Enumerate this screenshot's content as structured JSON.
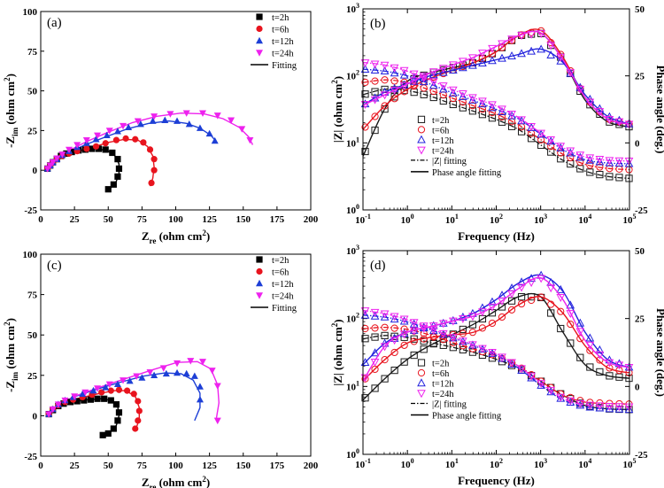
{
  "chart_data": [
    {
      "id": "a",
      "type": "scatter",
      "panel_label": "(a)",
      "xlabel": "Z",
      "xlabel_sub": "re",
      "xlabel_unit": " (ohm cm",
      "xlabel_sup": "2",
      "xlabel_close": ")",
      "ylabel": "-Z",
      "ylabel_sub": "im",
      "ylabel_unit": " (ohm cm",
      "ylabel_sup": "2",
      "ylabel_close": ")",
      "xlim": [
        0,
        200
      ],
      "ylim": [
        -25,
        100
      ],
      "xticks": [
        0,
        25,
        50,
        75,
        100,
        125,
        150,
        175,
        200
      ],
      "yticks": [
        -25,
        0,
        25,
        50,
        75,
        100
      ],
      "fit_label": "Fitting",
      "series": [
        {
          "name": "t=2h",
          "marker": "square",
          "color": "#000000",
          "x": [
            5,
            7,
            9,
            12,
            15,
            19,
            23,
            28,
            33,
            38,
            43,
            48,
            53,
            57,
            58,
            57,
            54,
            50
          ],
          "y": [
            1,
            3,
            5,
            7,
            9,
            10.5,
            11.5,
            12.5,
            13,
            13.5,
            13.5,
            13,
            11,
            7,
            1,
            -4,
            -9,
            -12
          ]
        },
        {
          "name": "t=6h",
          "marker": "circle",
          "color": "#e8141e",
          "x": [
            5,
            7,
            9,
            12,
            16,
            21,
            27,
            34,
            41,
            48,
            56,
            63,
            70,
            76,
            81,
            84,
            84,
            82
          ],
          "y": [
            1,
            3,
            5,
            7,
            9,
            10.5,
            12,
            13.5,
            15,
            17,
            19,
            20,
            19.5,
            17.5,
            13,
            7,
            0,
            -8
          ]
        },
        {
          "name": "t=12h",
          "marker": "triangle",
          "color": "#1d3fd6",
          "x": [
            5,
            7,
            9,
            12,
            16,
            21,
            27,
            34,
            41,
            49,
            57,
            65,
            74,
            83,
            92,
            101,
            110,
            118,
            125,
            129
          ],
          "y": [
            1,
            3,
            5,
            7,
            9.5,
            12,
            14.5,
            17,
            19.5,
            22,
            24.5,
            27,
            29,
            31,
            31.5,
            31,
            29,
            26.5,
            23,
            18.5
          ]
        },
        {
          "name": "t=24h",
          "marker": "triangle-down",
          "color": "#ee22ee",
          "x": [
            5,
            7,
            9,
            12,
            16,
            21,
            27,
            34,
            42,
            51,
            61,
            72,
            84,
            96,
            108,
            120,
            131,
            141,
            149,
            155
          ],
          "y": [
            1,
            3,
            5,
            7.5,
            10,
            13,
            16,
            19,
            22,
            25,
            28,
            31,
            34,
            35.5,
            36,
            36,
            34.5,
            31.5,
            26,
            19
          ]
        }
      ],
      "fits": [
        {
          "color": "#000000",
          "x": [
            4,
            8,
            14,
            22,
            32,
            42,
            50,
            55,
            58,
            58,
            56,
            52,
            48
          ],
          "y": [
            0,
            4,
            8,
            11,
            13,
            13.5,
            12,
            9,
            4,
            -2,
            -7,
            -11,
            -13
          ]
        },
        {
          "color": "#e8141e",
          "x": [
            4,
            8,
            15,
            25,
            37,
            50,
            62,
            72,
            79,
            83,
            84,
            83,
            81
          ],
          "y": [
            0,
            4,
            8,
            11,
            14,
            17.5,
            19.5,
            19,
            15,
            9,
            2,
            -5,
            -10
          ]
        },
        {
          "color": "#1d3fd6",
          "x": [
            4,
            10,
            20,
            33,
            48,
            64,
            80,
            95,
            108,
            118,
            126,
            130
          ],
          "y": [
            0,
            6,
            11,
            16,
            21,
            26,
            29.5,
            31,
            29.5,
            26.5,
            22,
            18
          ]
        },
        {
          "color": "#ee22ee",
          "x": [
            4,
            10,
            20,
            34,
            50,
            68,
            86,
            104,
            121,
            135,
            147,
            154,
            157
          ],
          "y": [
            0,
            6,
            12,
            18,
            24,
            30,
            34,
            36,
            35.5,
            32.5,
            27,
            21,
            16
          ]
        }
      ]
    },
    {
      "id": "b",
      "type": "line",
      "panel_label": "(b)",
      "xlabel": "Frequency (Hz)",
      "ylabel": "|Z| (ohm cm",
      "ylabel_sup": "2",
      "ylabel_close": ")",
      "y2label": "Phase angle (deg.)",
      "xlim_log10": [
        -1,
        5
      ],
      "ylim_log10": [
        0,
        3
      ],
      "y2lim": [
        -25,
        50
      ],
      "xticks_log10": [
        -1,
        0,
        1,
        2,
        3,
        4,
        5
      ],
      "yticks_log10": [
        0,
        1,
        2,
        3
      ],
      "y2ticks": [
        -25,
        0,
        25,
        50
      ],
      "legend_mod_label": "|Z| fitting",
      "legend_phase_label": "Phase angle fitting",
      "series": [
        {
          "name": "t=2h",
          "color": "#1a1a1a",
          "log_f": [
            -1,
            -0.5,
            0,
            0.5,
            1,
            1.5,
            2,
            2.5,
            3,
            3.5,
            4,
            4.5,
            5
          ],
          "log_z": [
            1.72,
            1.8,
            1.78,
            1.7,
            1.58,
            1.47,
            1.35,
            1.2,
            0.97,
            0.74,
            0.58,
            0.5,
            0.47
          ],
          "phase": [
            -5,
            13,
            23,
            26,
            28,
            30,
            34,
            40,
            41,
            31,
            16,
            8,
            6
          ]
        },
        {
          "name": "t=6h",
          "color": "#e8141e",
          "log_f": [
            -1,
            -0.5,
            0,
            0.5,
            1,
            1.5,
            2,
            2.5,
            3,
            3.5,
            4,
            4.5,
            5
          ],
          "log_z": [
            1.9,
            1.94,
            1.9,
            1.79,
            1.67,
            1.55,
            1.43,
            1.27,
            1.05,
            0.83,
            0.68,
            0.62,
            0.6
          ],
          "phase": [
            5,
            14,
            20,
            24,
            27,
            30,
            34,
            40,
            42,
            32,
            17,
            9,
            7
          ]
        },
        {
          "name": "t=12h",
          "color": "#2222dd",
          "log_f": [
            -1,
            -0.5,
            0,
            0.5,
            1,
            1.5,
            2,
            2.5,
            3,
            3.5,
            4,
            4.5,
            5
          ],
          "log_z": [
            2.1,
            2.07,
            2.0,
            1.88,
            1.75,
            1.63,
            1.5,
            1.36,
            1.13,
            0.9,
            0.75,
            0.7,
            0.69
          ],
          "phase": [
            14,
            19,
            22,
            25,
            27,
            29,
            31,
            33,
            35,
            30,
            18,
            10,
            7
          ]
        },
        {
          "name": "t=24h",
          "color": "#ee22ee",
          "log_f": [
            -1,
            -0.5,
            0,
            0.5,
            1,
            1.5,
            2,
            2.5,
            3,
            3.5,
            4,
            4.5,
            5
          ],
          "log_z": [
            2.2,
            2.16,
            2.07,
            1.94,
            1.8,
            1.67,
            1.55,
            1.38,
            1.15,
            0.93,
            0.79,
            0.74,
            0.73
          ],
          "phase": [
            14,
            18,
            22,
            26,
            29,
            32,
            36,
            40,
            41,
            31,
            17,
            9,
            7
          ]
        }
      ]
    },
    {
      "id": "c",
      "type": "scatter",
      "panel_label": "(c)",
      "xlabel": "Z",
      "xlabel_sub": "re",
      "xlabel_unit": " (ohm cm",
      "xlabel_sup": "2",
      "xlabel_close": ")",
      "ylabel": "-Z",
      "ylabel_sub": "im",
      "ylabel_unit": " (ohm cm",
      "ylabel_sup": "2",
      "ylabel_close": ")",
      "xlim": [
        0,
        200
      ],
      "ylim": [
        -25,
        100
      ],
      "xticks": [
        0,
        25,
        50,
        75,
        100,
        125,
        150,
        175,
        200
      ],
      "yticks": [
        -25,
        0,
        25,
        50,
        75,
        100
      ],
      "fit_label": "Fitting",
      "series": [
        {
          "name": "t=2h",
          "marker": "square",
          "color": "#000000",
          "x": [
            6,
            9,
            13,
            17,
            22,
            27,
            32,
            37,
            42,
            47,
            52,
            56,
            58,
            57,
            54,
            50,
            46
          ],
          "y": [
            1,
            3.5,
            6,
            7.5,
            8.5,
            9,
            9.5,
            10,
            10.5,
            10.5,
            9.5,
            7,
            2,
            -3,
            -8,
            -11,
            -12
          ]
        },
        {
          "name": "t=6h",
          "marker": "circle",
          "color": "#e8141e",
          "x": [
            6,
            9,
            13,
            18,
            24,
            31,
            38,
            45,
            52,
            58,
            64,
            69,
            72,
            73,
            72,
            70
          ],
          "y": [
            1,
            4,
            6.5,
            8.5,
            10,
            11.5,
            13,
            14.5,
            15.5,
            16,
            15.5,
            13.5,
            9,
            3,
            -3,
            -8
          ]
        },
        {
          "name": "t=12h",
          "marker": "triangle",
          "color": "#1d3fd6",
          "x": [
            6,
            9,
            13,
            18,
            24,
            31,
            39,
            48,
            57,
            66,
            75,
            84,
            93,
            101,
            108,
            114,
            118,
            118
          ],
          "y": [
            1,
            4,
            7,
            9.5,
            11.5,
            13.5,
            15.5,
            17.5,
            19.5,
            21.5,
            23.5,
            25,
            26,
            26.5,
            26,
            24.5,
            18,
            10
          ]
        },
        {
          "name": "t=24h",
          "marker": "triangle-down",
          "color": "#ee22ee",
          "x": [
            6,
            9,
            13,
            18,
            25,
            33,
            42,
            51,
            61,
            71,
            81,
            91,
            101,
            111,
            120,
            127,
            131,
            131
          ],
          "y": [
            1,
            4,
            7,
            9.5,
            12,
            14.5,
            17,
            19.5,
            22,
            24.5,
            27,
            29.5,
            32.5,
            34,
            33.5,
            28,
            18.5,
            -3
          ]
        }
      ],
      "fits": [
        {
          "color": "#000000",
          "x": [
            5,
            10,
            17,
            26,
            36,
            45,
            52,
            57,
            58,
            56,
            52,
            47
          ],
          "y": [
            0,
            4.5,
            7.5,
            9,
            10,
            10.5,
            9.5,
            6,
            0,
            -6,
            -10,
            -12
          ]
        },
        {
          "color": "#e8141e",
          "x": [
            5,
            10,
            18,
            29,
            42,
            54,
            63,
            70,
            73,
            73,
            71
          ],
          "y": [
            0,
            5,
            8.5,
            11,
            13.5,
            15.5,
            15.5,
            12,
            5,
            -2,
            -7
          ]
        },
        {
          "color": "#1d3fd6",
          "x": [
            5,
            12,
            24,
            40,
            58,
            76,
            92,
            104,
            113,
            118,
            118,
            114
          ],
          "y": [
            0,
            6,
            11.5,
            16,
            20.5,
            24.5,
            26.5,
            26,
            22,
            14,
            5,
            -3
          ]
        },
        {
          "color": "#ee22ee",
          "x": [
            5,
            12,
            25,
            43,
            63,
            83,
            101,
            116,
            126,
            131,
            132,
            130
          ],
          "y": [
            0,
            6,
            12,
            17.5,
            23,
            28.5,
            33,
            33.5,
            29,
            19,
            8,
            -2
          ]
        }
      ]
    },
    {
      "id": "d",
      "type": "line",
      "panel_label": "(d)",
      "xlabel": "Frequency (Hz)",
      "ylabel": "|Z| (ohm cm",
      "ylabel_sup": "2",
      "ylabel_close": ")",
      "y2label": "Phase angle (deg.)",
      "xlim_log10": [
        -1,
        5
      ],
      "ylim_log10": [
        0,
        3
      ],
      "y2lim": [
        -25,
        50
      ],
      "xticks_log10": [
        -1,
        0,
        1,
        2,
        3,
        4,
        5
      ],
      "yticks_log10": [
        0,
        1,
        2,
        3
      ],
      "y2ticks": [
        -25,
        0,
        25,
        50
      ],
      "legend_mod_label": "|Z| fitting",
      "legend_phase_label": "Phase angle fitting",
      "series": [
        {
          "name": "t=2h",
          "color": "#1a1a1a",
          "log_f": [
            -1,
            -0.5,
            0,
            0.5,
            1,
            1.5,
            2,
            2.5,
            3,
            3.5,
            4,
            4.5,
            5
          ],
          "log_z": [
            1.7,
            1.75,
            1.72,
            1.65,
            1.58,
            1.5,
            1.4,
            1.27,
            1.08,
            0.87,
            0.72,
            0.67,
            0.66
          ],
          "phase": [
            -5,
            3,
            10,
            15,
            19,
            23,
            28,
            33,
            33,
            20,
            8,
            4,
            3
          ]
        },
        {
          "name": "t=6h",
          "color": "#e8141e",
          "log_f": [
            -1,
            -0.5,
            0,
            0.5,
            1,
            1.5,
            2,
            2.5,
            3,
            3.5,
            4,
            4.5,
            5
          ],
          "log_z": [
            1.85,
            1.87,
            1.84,
            1.76,
            1.65,
            1.55,
            1.45,
            1.3,
            1.08,
            0.87,
            0.77,
            0.75,
            0.74
          ],
          "phase": [
            2,
            10,
            16,
            18,
            19,
            20,
            24,
            30,
            33,
            27,
            15,
            7,
            5
          ]
        },
        {
          "name": "t=12h",
          "color": "#2222dd",
          "log_f": [
            -1,
            -0.5,
            0,
            0.5,
            1,
            1.5,
            2,
            2.5,
            3,
            3.5,
            4,
            4.5,
            5
          ],
          "log_z": [
            2.05,
            2.02,
            1.95,
            1.84,
            1.72,
            1.6,
            1.46,
            1.27,
            1.02,
            0.8,
            0.7,
            0.67,
            0.66
          ],
          "phase": [
            8,
            16,
            20,
            22,
            24,
            27,
            32,
            38,
            41,
            35,
            20,
            10,
            7
          ]
        },
        {
          "name": "t=24h",
          "color": "#ee22ee",
          "log_f": [
            -1,
            -0.5,
            0,
            0.5,
            1,
            1.5,
            2,
            2.5,
            3,
            3.5,
            4,
            4.5,
            5
          ],
          "log_z": [
            2.12,
            2.07,
            1.98,
            1.86,
            1.73,
            1.61,
            1.48,
            1.3,
            1.05,
            0.82,
            0.73,
            0.71,
            0.7
          ],
          "phase": [
            2,
            15,
            20,
            22,
            24,
            26,
            30,
            36,
            40,
            32,
            17,
            9,
            7
          ]
        }
      ]
    }
  ]
}
